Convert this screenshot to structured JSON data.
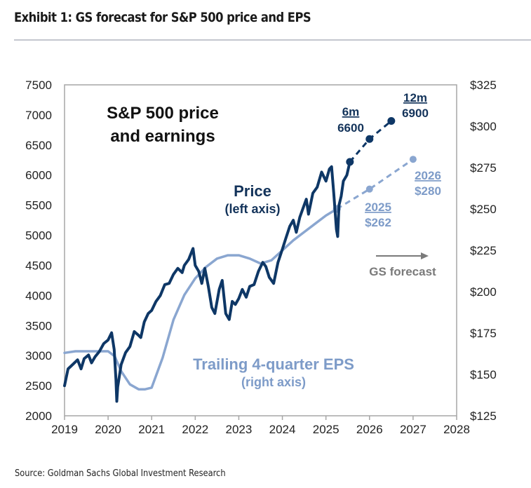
{
  "header": {
    "title": "Exhibit 1: GS forecast for S&P 500 price and EPS"
  },
  "footer": {
    "source": "Source: Goldman Sachs Global Investment Research"
  },
  "colors": {
    "price": "#0e3766",
    "eps": "#8aa6d0",
    "axis": "#a6a6a6",
    "forecast_arrow": "#7a7a7a"
  },
  "chart_data": {
    "type": "line",
    "title": "S&P 500 price and earnings",
    "title_lines": [
      "S&P 500 price",
      "and earnings"
    ],
    "xlabel": "",
    "ylabel_left": "",
    "ylabel_right": "",
    "x_range": [
      2019,
      2028
    ],
    "x_ticks": [
      "2019",
      "2020",
      "2021",
      "2022",
      "2023",
      "2024",
      "2025",
      "2026",
      "2027",
      "2028"
    ],
    "y_left_range": [
      2000,
      7500
    ],
    "y_left_ticks": [
      "2000",
      "2500",
      "3000",
      "3500",
      "4000",
      "4500",
      "5000",
      "5500",
      "6000",
      "6500",
      "7000",
      "7500"
    ],
    "y_right_range": [
      125,
      325
    ],
    "y_right_ticks": [
      "$125",
      "$150",
      "$175",
      "$200",
      "$225",
      "$250",
      "$275",
      "$300",
      "$325"
    ],
    "grid": false,
    "series": [
      {
        "name": "Price",
        "axis": "left",
        "label": "Price",
        "sublabel": "(left axis)",
        "x": [
          2019.0,
          2019.08,
          2019.17,
          2019.3,
          2019.38,
          2019.45,
          2019.55,
          2019.62,
          2019.7,
          2019.8,
          2019.9,
          2020.0,
          2020.08,
          2020.14,
          2020.18,
          2020.2,
          2020.22,
          2020.3,
          2020.4,
          2020.5,
          2020.6,
          2020.68,
          2020.75,
          2020.83,
          2020.92,
          2021.0,
          2021.1,
          2021.2,
          2021.3,
          2021.4,
          2021.5,
          2021.6,
          2021.7,
          2021.75,
          2021.85,
          2021.95,
          2022.0,
          2022.08,
          2022.15,
          2022.22,
          2022.3,
          2022.38,
          2022.45,
          2022.55,
          2022.62,
          2022.7,
          2022.78,
          2022.85,
          2022.92,
          2023.0,
          2023.08,
          2023.17,
          2023.25,
          2023.35,
          2023.45,
          2023.55,
          2023.62,
          2023.7,
          2023.8,
          2023.9,
          2024.0,
          2024.08,
          2024.17,
          2024.25,
          2024.32,
          2024.4,
          2024.5,
          2024.55,
          2024.6,
          2024.7,
          2024.8,
          2024.9,
          2025.0,
          2025.08,
          2025.13,
          2025.18,
          2025.24,
          2025.27,
          2025.3,
          2025.35,
          2025.4,
          2025.48,
          2025.55
        ],
        "values": [
          2500,
          2780,
          2840,
          2930,
          2780,
          2950,
          3010,
          2880,
          2980,
          3070,
          3200,
          3260,
          3380,
          3100,
          2600,
          2240,
          2480,
          2850,
          3050,
          3150,
          3400,
          3350,
          3300,
          3560,
          3700,
          3750,
          3900,
          4000,
          4180,
          4200,
          4350,
          4450,
          4380,
          4500,
          4600,
          4780,
          4500,
          4400,
          4200,
          4450,
          4150,
          3800,
          3700,
          4100,
          4250,
          3700,
          3600,
          3900,
          3850,
          3950,
          4100,
          3970,
          4150,
          4180,
          4400,
          4550,
          4480,
          4300,
          4200,
          4550,
          4770,
          4950,
          5150,
          5250,
          5050,
          5300,
          5500,
          5600,
          5350,
          5700,
          5800,
          6050,
          5900,
          6100,
          6140,
          5700,
          5100,
          4980,
          5500,
          5650,
          5900,
          6000,
          6220
        ]
      },
      {
        "name": "Price forecast",
        "axis": "left",
        "style": "dashed",
        "x": [
          2025.55,
          2026.0,
          2026.5
        ],
        "values": [
          6220,
          6600,
          6900
        ],
        "annotations": [
          {
            "label": "6m",
            "value": "6600"
          },
          {
            "label": "12m",
            "value": "6900"
          }
        ]
      },
      {
        "name": "Trailing 4-quarter EPS",
        "axis": "right",
        "label": "Trailing 4-quarter EPS",
        "sublabel": "(right axis)",
        "x": [
          2019.0,
          2019.25,
          2019.5,
          2019.75,
          2020.0,
          2020.15,
          2020.3,
          2020.5,
          2020.7,
          2020.85,
          2021.0,
          2021.25,
          2021.5,
          2021.75,
          2022.0,
          2022.25,
          2022.5,
          2022.75,
          2023.0,
          2023.25,
          2023.5,
          2023.75,
          2024.0,
          2024.25,
          2024.5,
          2024.75,
          2025.0,
          2025.25
        ],
        "values": [
          163,
          164,
          164,
          164,
          164,
          161,
          152,
          144,
          141,
          141,
          142,
          160,
          183,
          198,
          208,
          215,
          220,
          222,
          222,
          220,
          217,
          219,
          225,
          231,
          236,
          241,
          246,
          250
        ]
      },
      {
        "name": "EPS forecast",
        "axis": "right",
        "style": "dashed",
        "x": [
          2025.25,
          2026.0,
          2027.0
        ],
        "values": [
          250,
          262,
          280
        ],
        "annotations": [
          {
            "label": "2025",
            "value": "$262"
          },
          {
            "label": "2026",
            "value": "$280"
          }
        ]
      }
    ],
    "annotations": {
      "forecast_label": "GS forecast",
      "price_label": "Price",
      "price_sublabel": "(left axis)",
      "eps_label": "Trailing 4-quarter EPS",
      "eps_sublabel": "(right axis)",
      "six_month_label": "6m",
      "six_month_value": "6600",
      "twelve_month_label": "12m",
      "twelve_month_value": "6900",
      "eps_2025_label": "2025",
      "eps_2025_value": "$262",
      "eps_2026_label": "2026",
      "eps_2026_value": "$280"
    },
    "legend": "none (inline labels)"
  }
}
